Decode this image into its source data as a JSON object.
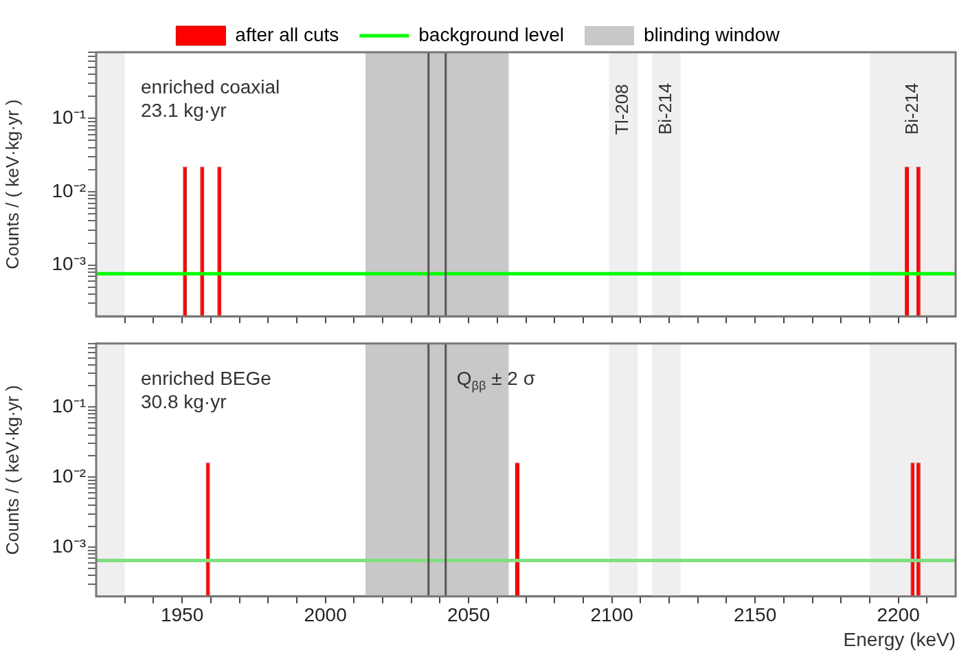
{
  "chart_data": [
    {
      "type": "histogram",
      "legend": "top",
      "log": true,
      "tick_labels": "y",
      "ylabel": "Counts / ( keV·kg·yr )",
      "bins": [
        1950,
        1952,
        1956,
        1958,
        1962,
        1964,
        2202,
        2204,
        2206,
        2208
      ],
      "series": [
        {
          "name": "after all cuts",
          "color": "#ff0000",
          "values": [
            0.022,
            null,
            0.022,
            null,
            0.022,
            null,
            0.022,
            null,
            0.022
          ]
        }
      ],
      "xlim": [
        1920,
        2220
      ],
      "ylim": [
        0.0002,
        0.8
      ],
      "xticks": [
        {
          "value": 1930,
          "label": null
        },
        {
          "value": 1940,
          "label": null
        },
        1950,
        {
          "value": 1960,
          "label": null
        },
        {
          "value": 1970,
          "label": null
        },
        {
          "value": 1980,
          "label": null
        },
        {
          "value": 1990,
          "label": null
        },
        2000,
        {
          "value": 2010,
          "label": null
        },
        {
          "value": 2020,
          "label": null
        },
        {
          "value": 2030,
          "label": null
        },
        {
          "value": 2040,
          "label": null
        },
        2050,
        {
          "value": 2060,
          "label": null
        },
        {
          "value": 2070,
          "label": null
        },
        {
          "value": 2080,
          "label": null
        },
        {
          "value": 2090,
          "label": null
        },
        2100,
        {
          "value": 2110,
          "label": null
        },
        {
          "value": 2120,
          "label": null
        },
        {
          "value": 2130,
          "label": null
        },
        {
          "value": 2140,
          "label": null
        },
        2150,
        {
          "value": 2160,
          "label": null
        },
        {
          "value": 2170,
          "label": null
        },
        {
          "value": 2180,
          "label": null
        },
        {
          "value": 2190,
          "label": null
        },
        2200,
        {
          "value": 2210,
          "label": null
        }
      ],
      "yticks": [
        {
          "value": 0.0003,
          "label": null
        },
        {
          "value": 0.0004,
          "label": null
        },
        {
          "value": 0.0005,
          "label": null
        },
        {
          "value": 0.0006,
          "label": null
        },
        {
          "value": 0.0007,
          "label": null
        },
        {
          "value": 0.0008,
          "label": null
        },
        {
          "value": 0.0009,
          "label": null
        },
        {
          "value": 0.001,
          "label": "10⁻³"
        },
        {
          "value": 0.002,
          "label": null
        },
        {
          "value": 0.003,
          "label": null
        },
        {
          "value": 0.004,
          "label": null
        },
        {
          "value": 0.005,
          "label": null
        },
        {
          "value": 0.006,
          "label": null
        },
        {
          "value": 0.007,
          "label": null
        },
        {
          "value": 0.008,
          "label": null
        },
        {
          "value": 0.009,
          "label": null
        },
        {
          "value": 0.01,
          "label": "10⁻²"
        },
        {
          "value": 0.02,
          "label": null
        },
        {
          "value": 0.03,
          "label": null
        },
        {
          "value": 0.04,
          "label": null
        },
        {
          "value": 0.05,
          "label": null
        },
        {
          "value": 0.06,
          "label": null
        },
        {
          "value": 0.07,
          "label": null
        },
        {
          "value": 0.08,
          "label": null
        },
        {
          "value": 0.09,
          "label": null
        },
        {
          "value": 0.1,
          "label": "10⁻¹"
        },
        {
          "value": 0.2,
          "label": null
        },
        {
          "value": 0.3,
          "label": null
        },
        {
          "value": 0.4,
          "label": null
        },
        {
          "value": 0.5,
          "label": null
        },
        {
          "value": 0.6,
          "label": null
        },
        {
          "value": 0.7,
          "label": null
        },
        {
          "value": 0.8,
          "label": null
        }
      ],
      "ref_lines": [
        {
          "axis": "y",
          "value": 0.00076,
          "label": "background level",
          "color": "#00ff00"
        },
        {
          "axis": "x",
          "value": 2036,
          "color": "#555555"
        },
        {
          "axis": "x",
          "value": 2042,
          "color": "#555555"
        }
      ],
      "bands": [
        {
          "axis": "x",
          "from": 2014,
          "to": 2064,
          "label": "blinding window",
          "color": "#c8c8c8"
        },
        {
          "axis": "x",
          "from": 1920,
          "to": 1930,
          "color": "#efefef"
        },
        {
          "axis": "x",
          "from": 2099,
          "to": 2109,
          "label": "Tl-208",
          "color": "#efefef"
        },
        {
          "axis": "x",
          "from": 2114,
          "to": 2124,
          "label": "Bi-214",
          "color": "#efefef"
        },
        {
          "axis": "x",
          "from": 2190,
          "to": 2220,
          "label": "Bi-214",
          "color": "#efefef"
        }
      ],
      "annotations": [
        "enriched coaxial",
        "23.1 kg·yr"
      ]
    },
    {
      "type": "histogram",
      "log": true,
      "xlabel": "Energy (keV)",
      "ylabel": "Counts / ( keV·kg·yr )",
      "bins": [
        1958,
        1960,
        2066,
        2068,
        2204,
        2206,
        2208
      ],
      "series": [
        {
          "color": "#ff0000",
          "values": [
            0.016,
            null,
            0.016,
            null,
            0.016,
            0.016
          ]
        }
      ],
      "xlim": [
        1920,
        2220
      ],
      "ylim": [
        0.0002,
        0.8
      ],
      "xticks": [
        {
          "value": 1930,
          "label": null
        },
        {
          "value": 1940,
          "label": null
        },
        1950,
        {
          "value": 1960,
          "label": null
        },
        {
          "value": 1970,
          "label": null
        },
        {
          "value": 1980,
          "label": null
        },
        {
          "value": 1990,
          "label": null
        },
        2000,
        {
          "value": 2010,
          "label": null
        },
        {
          "value": 2020,
          "label": null
        },
        {
          "value": 2030,
          "label": null
        },
        {
          "value": 2040,
          "label": null
        },
        2050,
        {
          "value": 2060,
          "label": null
        },
        {
          "value": 2070,
          "label": null
        },
        {
          "value": 2080,
          "label": null
        },
        {
          "value": 2090,
          "label": null
        },
        2100,
        {
          "value": 2110,
          "label": null
        },
        {
          "value": 2120,
          "label": null
        },
        {
          "value": 2130,
          "label": null
        },
        {
          "value": 2140,
          "label": null
        },
        2150,
        {
          "value": 2160,
          "label": null
        },
        {
          "value": 2170,
          "label": null
        },
        {
          "value": 2180,
          "label": null
        },
        {
          "value": 2190,
          "label": null
        },
        2200,
        {
          "value": 2210,
          "label": null
        }
      ],
      "yticks": [
        {
          "value": 0.0003,
          "label": null
        },
        {
          "value": 0.0004,
          "label": null
        },
        {
          "value": 0.0005,
          "label": null
        },
        {
          "value": 0.0006,
          "label": null
        },
        {
          "value": 0.0007,
          "label": null
        },
        {
          "value": 0.0008,
          "label": null
        },
        {
          "value": 0.0009,
          "label": null
        },
        {
          "value": 0.001,
          "label": "10⁻³"
        },
        {
          "value": 0.002,
          "label": null
        },
        {
          "value": 0.003,
          "label": null
        },
        {
          "value": 0.004,
          "label": null
        },
        {
          "value": 0.005,
          "label": null
        },
        {
          "value": 0.006,
          "label": null
        },
        {
          "value": 0.007,
          "label": null
        },
        {
          "value": 0.008,
          "label": null
        },
        {
          "value": 0.009,
          "label": null
        },
        {
          "value": 0.01,
          "label": "10⁻²"
        },
        {
          "value": 0.02,
          "label": null
        },
        {
          "value": 0.03,
          "label": null
        },
        {
          "value": 0.04,
          "label": null
        },
        {
          "value": 0.05,
          "label": null
        },
        {
          "value": 0.06,
          "label": null
        },
        {
          "value": 0.07,
          "label": null
        },
        {
          "value": 0.08,
          "label": null
        },
        {
          "value": 0.09,
          "label": null
        },
        {
          "value": 0.1,
          "label": "10⁻¹"
        },
        {
          "value": 0.2,
          "label": null
        },
        {
          "value": 0.3,
          "label": null
        },
        {
          "value": 0.4,
          "label": null
        },
        {
          "value": 0.5,
          "label": null
        },
        {
          "value": 0.6,
          "label": null
        },
        {
          "value": 0.7,
          "label": null
        },
        {
          "value": 0.8,
          "label": null
        }
      ],
      "ref_lines": [
        {
          "axis": "y",
          "value": 0.00065,
          "color": "#7ee07e"
        },
        {
          "axis": "x",
          "value": 2036,
          "color": "#555555"
        },
        {
          "axis": "x",
          "value": 2042,
          "label": "Q$_{ββ}$ ± 2 σ",
          "color": "#555555"
        }
      ],
      "bands": [
        {
          "axis": "x",
          "from": 2014,
          "to": 2064,
          "color": "#c8c8c8"
        },
        {
          "axis": "x",
          "from": 1920,
          "to": 1930,
          "color": "#efefef"
        },
        {
          "axis": "x",
          "from": 2099,
          "to": 2109,
          "color": "#efefef"
        },
        {
          "axis": "x",
          "from": 2114,
          "to": 2124,
          "color": "#efefef"
        },
        {
          "axis": "x",
          "from": 2190,
          "to": 2220,
          "color": "#efefef"
        }
      ],
      "annotations": [
        "enriched BEGe",
        "30.8 kg·yr"
      ]
    }
  ]
}
